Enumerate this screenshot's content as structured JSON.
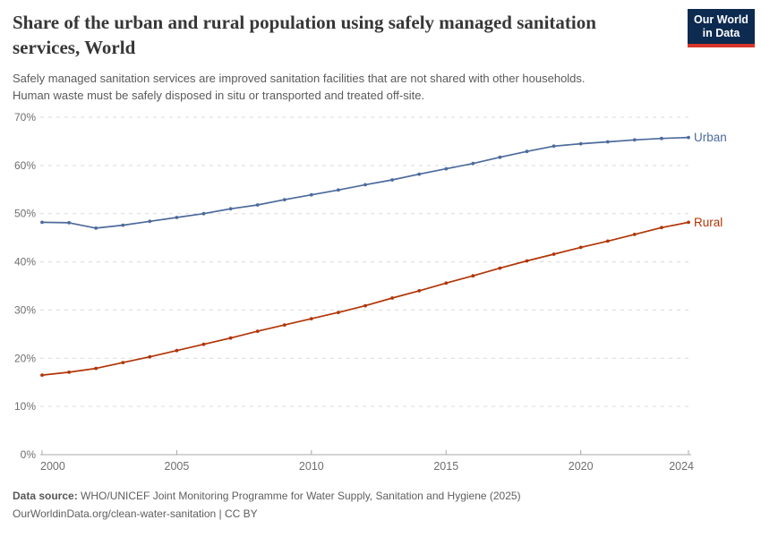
{
  "header": {
    "title": "Share of the urban and rural population using safely managed sanitation services, World",
    "subtitle_lines": [
      "Safely managed sanitation services are improved sanitation facilities that are not shared with other households.",
      "Human waste must be safely disposed in situ or transported and treated off-site."
    ],
    "logo": {
      "line1": "Our World",
      "line2": "in Data"
    }
  },
  "chart_data": {
    "type": "line",
    "x": [
      2000,
      2001,
      2002,
      2003,
      2004,
      2005,
      2006,
      2007,
      2008,
      2009,
      2010,
      2011,
      2012,
      2013,
      2014,
      2015,
      2016,
      2017,
      2018,
      2019,
      2020,
      2021,
      2022,
      2023,
      2024
    ],
    "series": [
      {
        "name": "Urban",
        "color": "#4C6A9C",
        "values": [
          48.2,
          48.1,
          47.0,
          47.6,
          48.4,
          49.2,
          50.0,
          51.0,
          51.8,
          52.9,
          53.9,
          54.9,
          56.0,
          57.0,
          58.2,
          59.3,
          60.4,
          61.7,
          62.9,
          64.0,
          64.5,
          64.9,
          65.3,
          65.6,
          65.8
        ]
      },
      {
        "name": "Rural",
        "color": "#B13507",
        "values": [
          16.5,
          17.1,
          17.9,
          19.1,
          20.3,
          21.6,
          22.9,
          24.2,
          25.6,
          26.9,
          28.2,
          29.5,
          30.9,
          32.5,
          34.0,
          35.6,
          37.1,
          38.7,
          40.2,
          41.6,
          43.0,
          44.3,
          45.7,
          47.1,
          48.2
        ]
      }
    ],
    "title": "Share of the urban and rural population using safely managed sanitation services, World",
    "xlabel": "",
    "ylabel": "",
    "ylim": [
      0,
      70
    ],
    "xlim": [
      2000,
      2024
    ],
    "yticks": [
      0,
      10,
      20,
      30,
      40,
      50,
      60,
      70
    ],
    "ytick_suffix": "%",
    "xticks": [
      2000,
      2005,
      2010,
      2015,
      2020,
      2024
    ],
    "grid": "horizontal-dashed",
    "legend_position": "line-end-labels"
  },
  "colors": {
    "grid": "#dadada",
    "axis": "#a8a8a8",
    "tick_label": "#6e6e6e",
    "logo_bg": "#0d2a50",
    "logo_accent": "#d8352a"
  },
  "footer": {
    "source_label": "Data source:",
    "source_text": "WHO/UNICEF Joint Monitoring Programme for Water Supply, Sanitation and Hygiene (2025)",
    "link_line": "OurWorldinData.org/clean-water-sanitation | CC BY"
  }
}
